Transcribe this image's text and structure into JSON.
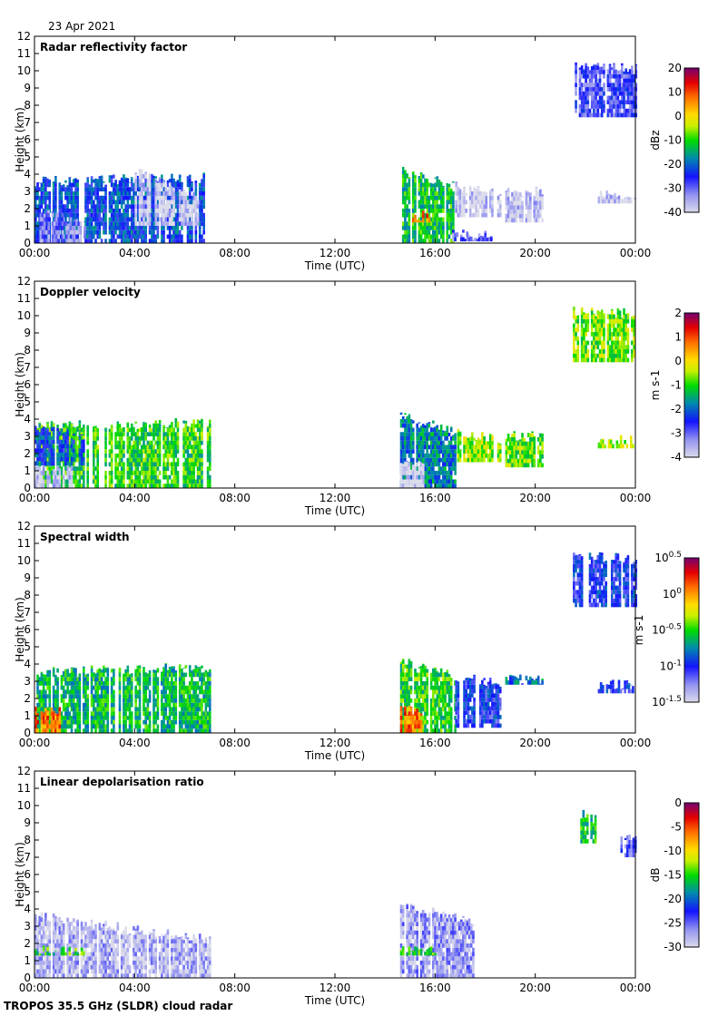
{
  "date_label": "23 Apr 2021",
  "footer": "TROPOS 35.5 GHz (SLDR) cloud radar",
  "chart_data": [
    {
      "type": "heatmap",
      "title": "Radar reflectivity factor",
      "xlabel": "Time (UTC)",
      "ylabel": "Height (km)",
      "xlim": [
        0,
        24
      ],
      "ylim": [
        0,
        12
      ],
      "xticks": [
        "00:00",
        "04:00",
        "08:00",
        "12:00",
        "16:00",
        "20:00",
        "00:00"
      ],
      "yticks": [
        "0",
        "1",
        "2",
        "3",
        "4",
        "5",
        "6",
        "7",
        "8",
        "9",
        "10",
        "11",
        "12"
      ],
      "colorbar": {
        "unit": "dBz",
        "range": [
          -40,
          20
        ],
        "ticks": [
          "20",
          "10",
          "0",
          "-10",
          "-20",
          "-30",
          "-40"
        ]
      },
      "echo_regions": [
        {
          "t": [
            0,
            7
          ],
          "base": 0,
          "top": [
            3.6,
            3.8
          ],
          "value": -22
        },
        {
          "t": [
            0.2,
            2
          ],
          "base": 0,
          "top": [
            1.8,
            1.2
          ],
          "value": -32
        },
        {
          "t": [
            4,
            6.5
          ],
          "base": 1,
          "top": [
            4.2,
            2.6
          ],
          "value": -38
        },
        {
          "t": [
            14.6,
            16.8
          ],
          "base": 0,
          "top": [
            4.2,
            3.3
          ],
          "value": -12
        },
        {
          "t": [
            15,
            15.8
          ],
          "base": 1.2,
          "top": [
            1.6,
            1.6
          ],
          "value": 8
        },
        {
          "t": [
            16.8,
            18.6
          ],
          "base": 1.5,
          "top": [
            3.3,
            2.8
          ],
          "value": -38
        },
        {
          "t": [
            18.8,
            20.3
          ],
          "base": 1.2,
          "top": [
            3,
            3
          ],
          "value": -38
        },
        {
          "t": [
            16.6,
            18.2
          ],
          "base": 0.1,
          "top": [
            0.6,
            0.4
          ],
          "value": -30
        },
        {
          "t": [
            21.5,
            24
          ],
          "base": 7.3,
          "top": [
            10.3,
            10.1
          ],
          "value": -28
        },
        {
          "t": [
            22.5,
            24
          ],
          "base": 2.3,
          "top": [
            2.8,
            2.8
          ],
          "value": -38
        }
      ]
    },
    {
      "type": "heatmap",
      "title": "Doppler velocity",
      "xlabel": "Time (UTC)",
      "ylabel": "Height (km)",
      "xlim": [
        0,
        24
      ],
      "ylim": [
        0,
        12
      ],
      "xticks": [
        "00:00",
        "04:00",
        "08:00",
        "12:00",
        "16:00",
        "20:00",
        "00:00"
      ],
      "yticks": [
        "0",
        "1",
        "2",
        "3",
        "4",
        "5",
        "6",
        "7",
        "8",
        "9",
        "10",
        "11",
        "12"
      ],
      "colorbar": {
        "unit": "m s-1",
        "range": [
          -4,
          2
        ],
        "ticks": [
          "2",
          "1",
          "0",
          "-1",
          "-2",
          "-3",
          "-4"
        ]
      },
      "echo_regions": [
        {
          "t": [
            0,
            7
          ],
          "base": 0,
          "top": [
            3.6,
            3.8
          ],
          "value": -1.0
        },
        {
          "t": [
            0,
            1.5
          ],
          "base": 0,
          "top": [
            1.3,
            1.3
          ],
          "value": -3.8
        },
        {
          "t": [
            0,
            2
          ],
          "base": 1.3,
          "top": [
            3.6,
            3
          ],
          "value": -2.2
        },
        {
          "t": [
            14.6,
            16.8
          ],
          "base": 0,
          "top": [
            4.2,
            3.3
          ],
          "value": -1.8
        },
        {
          "t": [
            14.6,
            15.5
          ],
          "base": 0,
          "top": [
            1.3,
            1.3
          ],
          "value": -4
        },
        {
          "t": [
            16.8,
            18.6
          ],
          "base": 1.5,
          "top": [
            3.3,
            2.8
          ],
          "value": -0.6
        },
        {
          "t": [
            18.8,
            20.3
          ],
          "base": 1.2,
          "top": [
            3,
            3
          ],
          "value": -0.8
        },
        {
          "t": [
            21.5,
            24
          ],
          "base": 7.3,
          "top": [
            10.3,
            10.1
          ],
          "value": -0.7
        },
        {
          "t": [
            22.5,
            24
          ],
          "base": 2.3,
          "top": [
            2.8,
            2.8
          ],
          "value": -0.5
        }
      ]
    },
    {
      "type": "heatmap",
      "title": "Spectral width",
      "xlabel": "Time (UTC)",
      "ylabel": "Height (km)",
      "xlim": [
        0,
        24
      ],
      "ylim": [
        0,
        12
      ],
      "xticks": [
        "00:00",
        "04:00",
        "08:00",
        "12:00",
        "16:00",
        "20:00",
        "00:00"
      ],
      "yticks": [
        "0",
        "1",
        "2",
        "3",
        "4",
        "5",
        "6",
        "7",
        "8",
        "9",
        "10",
        "11",
        "12"
      ],
      "colorbar": {
        "unit": "m s-1",
        "scale": "log",
        "range": [
          -1.5,
          0.5
        ],
        "ticks": [
          "10^0.5",
          "10^0",
          "10^-0.5",
          "10^-1",
          "10^-1.5"
        ]
      },
      "echo_regions": [
        {
          "t": [
            0,
            7
          ],
          "base": 0,
          "top": [
            3.6,
            3.8
          ],
          "value": -0.6
        },
        {
          "t": [
            0,
            1
          ],
          "base": 0,
          "top": [
            1.3,
            1.3
          ],
          "value": 0.1
        },
        {
          "t": [
            14.6,
            16.8
          ],
          "base": 0,
          "top": [
            4.2,
            3.3
          ],
          "value": -0.5
        },
        {
          "t": [
            14.6,
            15.5
          ],
          "base": 0,
          "top": [
            1.3,
            1.3
          ],
          "value": 0.1
        },
        {
          "t": [
            16.8,
            18.6
          ],
          "base": 0.3,
          "top": [
            3.3,
            2.8
          ],
          "value": -1.0
        },
        {
          "t": [
            18.8,
            20.3
          ],
          "base": 2.8,
          "top": [
            3.1,
            3.1
          ],
          "value": -0.8
        },
        {
          "t": [
            21.5,
            24
          ],
          "base": 7.3,
          "top": [
            10.3,
            10.1
          ],
          "value": -1.0
        },
        {
          "t": [
            22.5,
            24
          ],
          "base": 2.3,
          "top": [
            2.8,
            2.8
          ],
          "value": -1.0
        }
      ]
    },
    {
      "type": "heatmap",
      "title": "Linear depolarisation ratio",
      "xlabel": "Time (UTC)",
      "ylabel": "Height (km)",
      "xlim": [
        0,
        24
      ],
      "ylim": [
        0,
        12
      ],
      "xticks": [
        "00:00",
        "04:00",
        "08:00",
        "12:00",
        "16:00",
        "20:00",
        "00:00"
      ],
      "yticks": [
        "0",
        "1",
        "2",
        "3",
        "4",
        "5",
        "6",
        "7",
        "8",
        "9",
        "10",
        "11",
        "12"
      ],
      "colorbar": {
        "unit": "dB",
        "range": [
          -30,
          0
        ],
        "ticks": [
          "0",
          "-5",
          "-10",
          "-15",
          "-20",
          "-25",
          "-30"
        ]
      },
      "echo_regions": [
        {
          "t": [
            0,
            7
          ],
          "base": 0,
          "top": [
            3.6,
            2.2
          ],
          "value": -28
        },
        {
          "t": [
            0,
            2
          ],
          "base": 1.3,
          "top": [
            1.6,
            1.5
          ],
          "value": -15
        },
        {
          "t": [
            14.6,
            17.5
          ],
          "base": 0,
          "top": [
            4.2,
            3.3
          ],
          "value": -27
        },
        {
          "t": [
            14.6,
            16
          ],
          "base": 1.3,
          "top": [
            1.6,
            1.6
          ],
          "value": -15
        },
        {
          "t": [
            21.8,
            22.4
          ],
          "base": 7.8,
          "top": [
            9.5,
            9.2
          ],
          "value": -16
        },
        {
          "t": [
            23.4,
            24
          ],
          "base": 7,
          "top": [
            8.3,
            8.3
          ],
          "value": -25
        }
      ]
    }
  ]
}
